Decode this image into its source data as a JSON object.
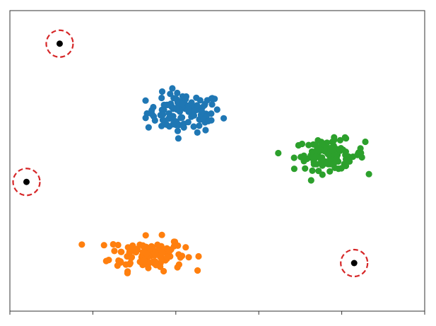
{
  "chart_data": {
    "type": "scatter",
    "title": "",
    "xlabel": "",
    "ylabel": "",
    "tick_labels_shown": false,
    "grid": false,
    "legend": "none",
    "xlim": [
      0,
      10
    ],
    "ylim": [
      0,
      10
    ],
    "xticks": [
      0,
      2,
      4,
      6,
      8,
      10
    ],
    "clusters": [
      {
        "color": "#1f77b4",
        "center": [
          4.2,
          6.6
        ],
        "spread": [
          0.9,
          0.65
        ],
        "count": 110
      },
      {
        "color": "#ff7f0e",
        "center": [
          3.3,
          1.9
        ],
        "spread": [
          0.9,
          0.55
        ],
        "count": 120
      },
      {
        "color": "#2ca02c",
        "center": [
          7.7,
          5.2
        ],
        "spread": [
          0.85,
          0.5
        ],
        "count": 100
      }
    ],
    "outliers": {
      "color": "#000000",
      "ring_color": "#d62728",
      "points": [
        [
          1.2,
          8.9
        ],
        [
          0.4,
          4.3
        ],
        [
          8.3,
          1.6
        ]
      ]
    }
  }
}
